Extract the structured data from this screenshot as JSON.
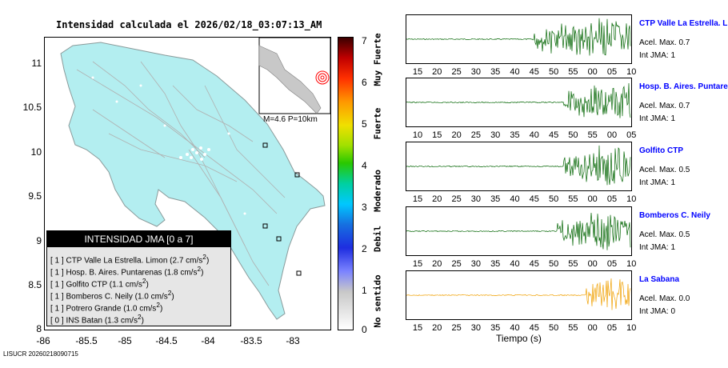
{
  "map": {
    "title": "Intensidad calculada el 2026/02/18_03:07:13_AM",
    "y_labels": [
      "11",
      "10.5",
      "10",
      "9.5",
      "9",
      "8.5",
      "8"
    ],
    "x_labels": [
      "-86",
      "-85.5",
      "-85",
      "-84.5",
      "-84",
      "-83.5",
      "-83"
    ],
    "magnitude_text": "M=4.6 P=10km",
    "legend": {
      "title": "INTENSIDAD JMA [0 a 7]",
      "rows": [
        {
          "level": "[ 1 ]",
          "station": "CTP Valle La Estrella. Limon",
          "value": "(2.7 cm/s",
          "sup": "2",
          "close": ")"
        },
        {
          "level": "[ 1 ]",
          "station": "Hosp. B. Aires. Puntarenas",
          "value": "(1.8 cm/s",
          "sup": "2",
          "close": ")"
        },
        {
          "level": "[ 1 ]",
          "station": "Golfito CTP",
          "value": "(1.1 cm/s",
          "sup": "2",
          "close": ")"
        },
        {
          "level": "[ 1 ]",
          "station": "Bomberos C. Neily",
          "value": "(1.0 cm/s",
          "sup": "2",
          "close": ")"
        },
        {
          "level": "[ 1 ]",
          "station": "Potrero Grande",
          "value": "(1.0 cm/s",
          "sup": "2",
          "close": ")"
        },
        {
          "level": "[ 0 ]",
          "station": "INS Batan",
          "value": "(1.3 cm/s",
          "sup": "2",
          "close": ")"
        }
      ]
    }
  },
  "colorbar": {
    "numbers": [
      "7",
      "6",
      "5",
      "4",
      "3",
      "2",
      "1",
      "0"
    ],
    "words": [
      "Muy Fuerte",
      "Fuerte",
      "Moderado",
      "Debil",
      "No sentido"
    ]
  },
  "traces": [
    {
      "name": "CTP Valle La Estrella. Limon",
      "acel": "Acel. Max. 0.7",
      "jma": "Int JMA: 1",
      "color": "#006400",
      "ticks": [
        "15",
        "20",
        "25",
        "30",
        "35",
        "40",
        "45",
        "50",
        "55",
        "00",
        "05",
        "10"
      ],
      "onset": 0.56
    },
    {
      "name": "Hosp. B. Aires. Puntarenas",
      "acel": "Acel. Max. 0.7",
      "jma": "Int JMA: 1",
      "color": "#006400",
      "ticks": [
        "10",
        "15",
        "20",
        "25",
        "30",
        "35",
        "40",
        "45",
        "50",
        "55",
        "00",
        "05"
      ],
      "onset": 0.7
    },
    {
      "name": "Golfito CTP",
      "acel": "Acel. Max. 0.5",
      "jma": "Int JMA: 1",
      "color": "#006400",
      "ticks": [
        "15",
        "20",
        "25",
        "30",
        "35",
        "40",
        "45",
        "50",
        "55",
        "00",
        "05",
        "10"
      ],
      "onset": 0.7
    },
    {
      "name": "Bomberos C. Neily",
      "acel": "Acel. Max. 0.5",
      "jma": "Int JMA: 1",
      "color": "#006400",
      "ticks": [
        "15",
        "20",
        "25",
        "30",
        "35",
        "40",
        "45",
        "50",
        "55",
        "00",
        "05",
        "10"
      ],
      "onset": 0.67
    },
    {
      "name": "La Sabana",
      "acel": "Acel. Max. 0.0",
      "jma": "Int JMA: 0",
      "color": "#f0a000",
      "ticks": [
        "15",
        "20",
        "25",
        "30",
        "35",
        "40",
        "45",
        "50",
        "55",
        "00",
        "05",
        "10"
      ],
      "onset": 0.8
    }
  ],
  "time_axis_label": "Tiempo (s)",
  "footer": "LISUCR 20260218090715"
}
